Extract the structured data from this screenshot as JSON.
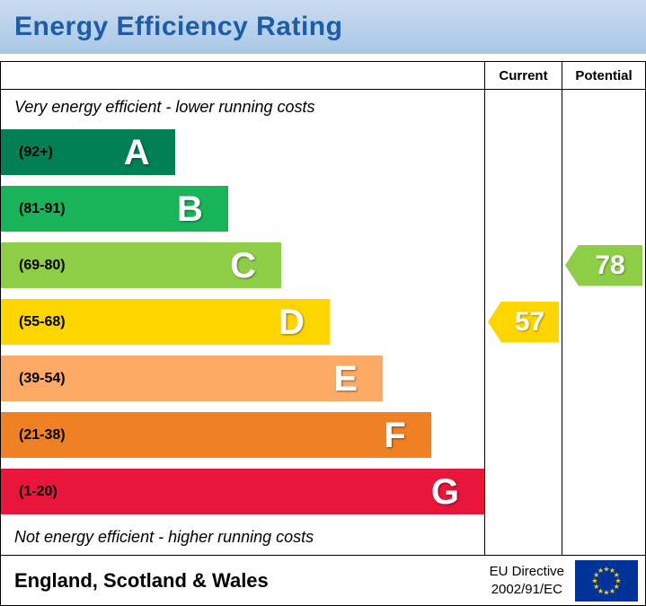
{
  "title": "Energy Efficiency Rating",
  "columns": {
    "current": "Current",
    "potential": "Potential"
  },
  "notes": {
    "top": "Very energy efficient - lower running costs",
    "bottom": "Not energy efficient - higher running costs"
  },
  "bands": [
    {
      "letter": "A",
      "range": "(92+)",
      "color": "#008054",
      "width_pct": 36
    },
    {
      "letter": "B",
      "range": "(81-91)",
      "color": "#19b459",
      "width_pct": 47
    },
    {
      "letter": "C",
      "range": "(69-80)",
      "color": "#8dce46",
      "width_pct": 58
    },
    {
      "letter": "D",
      "range": "(55-68)",
      "color": "#ffd500",
      "width_pct": 68
    },
    {
      "letter": "E",
      "range": "(39-54)",
      "color": "#fcaa65",
      "width_pct": 79
    },
    {
      "letter": "F",
      "range": "(21-38)",
      "color": "#ef8023",
      "width_pct": 89
    },
    {
      "letter": "G",
      "range": "(1-20)",
      "color": "#e9153b",
      "width_pct": 100
    }
  ],
  "current": {
    "value": "57",
    "band": "D",
    "band_index": 3,
    "color": "#ffd500"
  },
  "potential": {
    "value": "78",
    "band": "C",
    "band_index": 2,
    "color": "#8dce46"
  },
  "footer": {
    "region": "England, Scotland & Wales",
    "directive_line1": "EU Directive",
    "directive_line2": "2002/91/EC"
  },
  "icons": {
    "eu_flag": {
      "background": "#003399",
      "star_color": "#ffcc00",
      "star_glyph": "★",
      "star_count": 12
    }
  },
  "chart_data": {
    "type": "bar",
    "title": "Energy Efficiency Rating",
    "categories": [
      "A (92+)",
      "B (81-91)",
      "C (69-80)",
      "D (55-68)",
      "E (39-54)",
      "F (21-38)",
      "G (1-20)"
    ],
    "values": [
      36,
      47,
      58,
      68,
      79,
      89,
      100
    ],
    "value_note": "relative bar widths in % of plot area",
    "colors": [
      "#008054",
      "#19b459",
      "#8dce46",
      "#ffd500",
      "#fcaa65",
      "#ef8023",
      "#e9153b"
    ],
    "top_label": "Very energy efficient - lower running costs",
    "bottom_label": "Not energy efficient - higher running costs",
    "markers": [
      {
        "name": "Current",
        "value": 57,
        "band": "D"
      },
      {
        "name": "Potential",
        "value": 78,
        "band": "C"
      }
    ]
  }
}
